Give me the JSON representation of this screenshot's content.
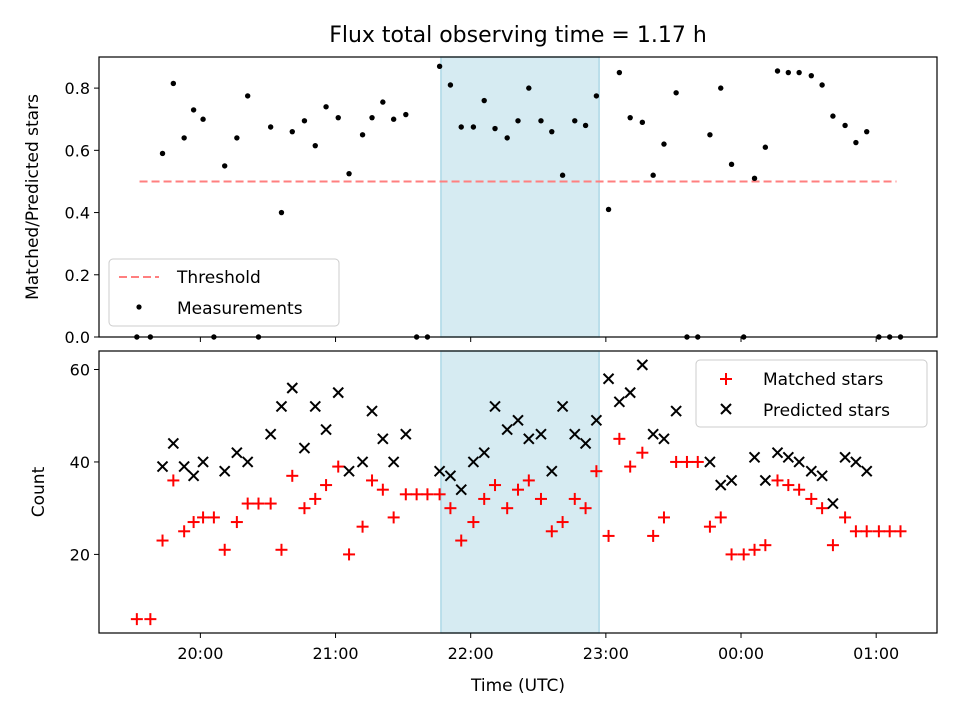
{
  "chart_data": [
    {
      "type": "scatter",
      "title": "Flux total observing time = 1.17 h",
      "xlabel": "",
      "ylabel": "Matched/Predicted stars",
      "ylim": [
        0,
        0.9
      ],
      "yticks": [
        "0.0",
        "0.2",
        "0.4",
        "0.6",
        "0.8"
      ],
      "ytick_values": [
        0,
        0.2,
        0.4,
        0.6,
        0.8
      ],
      "highlight_span": {
        "start_h": 21.78,
        "end_h": 22.95,
        "color": "#add8e6"
      },
      "threshold": {
        "label": "Threshold",
        "value": 0.5,
        "x_start_h": 19.55,
        "x_end_h": 25.15,
        "color": "#ff7f7f"
      },
      "legend": {
        "placement": "lower-left",
        "entries": [
          "Threshold",
          "Measurements"
        ]
      },
      "series": [
        {
          "name": "Measurements",
          "color": "#000000",
          "x_hours": [
            19.53,
            19.63,
            19.72,
            19.8,
            19.88,
            19.95,
            20.02,
            20.1,
            20.18,
            20.27,
            20.35,
            20.43,
            20.52,
            20.6,
            20.68,
            20.77,
            20.85,
            20.93,
            21.02,
            21.1,
            21.2,
            21.27,
            21.35,
            21.43,
            21.52,
            21.6,
            21.68,
            21.77,
            21.85,
            21.93,
            22.02,
            22.1,
            22.18,
            22.27,
            22.35,
            22.43,
            22.52,
            22.6,
            22.68,
            22.77,
            22.85,
            22.93,
            23.02,
            23.1,
            23.18,
            23.27,
            23.35,
            23.43,
            23.52,
            23.6,
            23.68,
            23.77,
            23.85,
            23.93,
            24.02,
            24.1,
            24.18,
            24.27,
            24.35,
            24.43,
            24.52,
            24.6,
            24.68,
            24.77,
            24.85,
            24.93,
            25.02,
            25.1,
            25.18
          ],
          "y": [
            0,
            0,
            0.59,
            0.815,
            0.64,
            0.73,
            0.7,
            0,
            0.55,
            0.64,
            0.775,
            0,
            0.675,
            0.4,
            0.66,
            0.695,
            0.615,
            0.74,
            0.705,
            0.525,
            0.65,
            0.705,
            0.755,
            0.7,
            0.715,
            0,
            0,
            0.87,
            0.81,
            0.675,
            0.675,
            0.76,
            0.67,
            0.64,
            0.695,
            0.8,
            0.695,
            0.66,
            0.52,
            0.695,
            0.68,
            0.775,
            0.41,
            0.85,
            0.705,
            0.69,
            0.52,
            0.62,
            0.785,
            0,
            0,
            0.65,
            0.8,
            0.555,
            0,
            0.51,
            0.61,
            0.855,
            0.85,
            0.85,
            0.84,
            0.81,
            0.71,
            0.68,
            0.625,
            0.66,
            0,
            0,
            0
          ]
        }
      ]
    },
    {
      "type": "scatter",
      "title": "",
      "xlabel": "Time (UTC)",
      "ylabel": "Count",
      "ylim": [
        3,
        64
      ],
      "xlim_h": [
        19.25,
        25.45
      ],
      "yticks": [
        "20",
        "40",
        "60"
      ],
      "ytick_values": [
        20,
        40,
        60
      ],
      "xticks": [
        "20:00",
        "21:00",
        "22:00",
        "23:00",
        "00:00",
        "01:00"
      ],
      "xtick_values_h": [
        20,
        21,
        22,
        23,
        24,
        25
      ],
      "highlight_span": {
        "start_h": 21.78,
        "end_h": 22.95,
        "color": "#add8e6"
      },
      "legend": {
        "placement": "top-right",
        "entries": [
          "Matched stars",
          "Predicted stars"
        ]
      },
      "series": [
        {
          "name": "Matched stars",
          "color": "#ff0000",
          "marker": "+",
          "x_hours": [
            19.53,
            19.63,
            19.72,
            19.8,
            19.88,
            19.95,
            20.02,
            20.1,
            20.18,
            20.27,
            20.35,
            20.43,
            20.52,
            20.6,
            20.68,
            20.77,
            20.85,
            20.93,
            21.02,
            21.1,
            21.2,
            21.27,
            21.35,
            21.43,
            21.52,
            21.6,
            21.68,
            21.77,
            21.85,
            21.93,
            22.02,
            22.1,
            22.18,
            22.27,
            22.35,
            22.43,
            22.52,
            22.6,
            22.68,
            22.77,
            22.85,
            22.93,
            23.02,
            23.1,
            23.18,
            23.27,
            23.35,
            23.43,
            23.52,
            23.6,
            23.68,
            23.77,
            23.85,
            23.93,
            24.02,
            24.1,
            24.18,
            24.27,
            24.35,
            24.43,
            24.52,
            24.6,
            24.68,
            24.77,
            24.85,
            24.93,
            25.02,
            25.1,
            25.18
          ],
          "y": [
            6,
            6,
            23,
            36,
            25,
            27,
            28,
            28,
            21,
            27,
            31,
            31,
            31,
            21,
            37,
            30,
            32,
            35,
            39,
            20,
            26,
            36,
            34,
            28,
            33,
            33,
            33,
            33,
            30,
            23,
            27,
            32,
            35,
            30,
            34,
            36,
            32,
            25,
            27,
            32,
            30,
            38,
            24,
            45,
            39,
            42,
            24,
            28,
            40,
            40,
            40,
            26,
            28,
            20,
            20,
            21,
            22,
            36,
            35,
            34,
            32,
            30,
            22,
            28,
            25,
            25,
            25,
            25,
            25
          ]
        },
        {
          "name": "Predicted stars",
          "color": "#000000",
          "marker": "x",
          "x_hours": [
            19.72,
            19.8,
            19.88,
            19.95,
            20.02,
            20.18,
            20.27,
            20.35,
            20.52,
            20.6,
            20.68,
            20.77,
            20.85,
            20.93,
            21.02,
            21.1,
            21.2,
            21.27,
            21.35,
            21.43,
            21.52,
            21.77,
            21.85,
            21.93,
            22.02,
            22.1,
            22.18,
            22.27,
            22.35,
            22.43,
            22.52,
            22.6,
            22.68,
            22.77,
            22.85,
            22.93,
            23.02,
            23.1,
            23.18,
            23.27,
            23.35,
            23.43,
            23.52,
            23.77,
            23.85,
            23.93,
            24.1,
            24.18,
            24.27,
            24.35,
            24.43,
            24.52,
            24.6,
            24.68,
            24.77,
            24.85,
            24.93
          ],
          "y": [
            39,
            44,
            39,
            37,
            40,
            38,
            42,
            40,
            46,
            52,
            56,
            43,
            52,
            47,
            55,
            38,
            40,
            51,
            45,
            40,
            46,
            38,
            37,
            34,
            40,
            42,
            52,
            47,
            49,
            45,
            46,
            38,
            52,
            46,
            44,
            49,
            58,
            53,
            55,
            61,
            46,
            45,
            51,
            40,
            35,
            36,
            41,
            36,
            42,
            41,
            40,
            38,
            37,
            31,
            41,
            40,
            38
          ]
        }
      ]
    }
  ]
}
